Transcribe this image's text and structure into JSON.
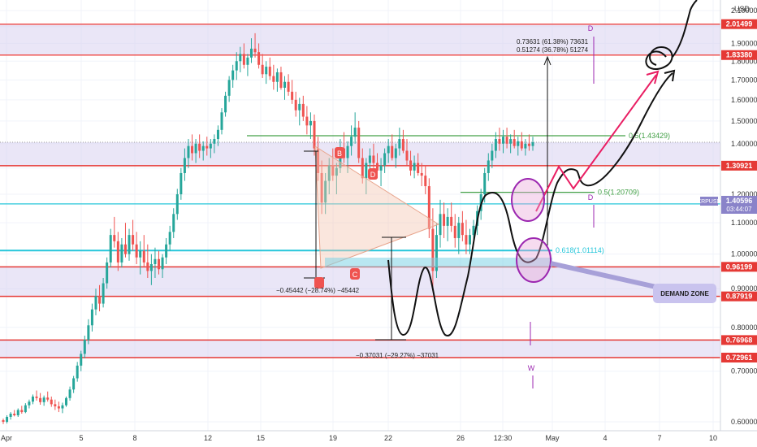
{
  "chart_data": {
    "type": "candlestick",
    "symbol": "XRPUSD",
    "currency": "USD",
    "current_price": "1.40596",
    "countdown": "03:44:07",
    "y_axis": {
      "scale": "log",
      "range": [
        0.57,
        2.12
      ],
      "ticks": [
        "2.10000",
        "2.00000",
        "1.90000",
        "1.80000",
        "1.70000",
        "1.60000",
        "1.50000",
        "1.40000",
        "1.30000",
        "1.20000",
        "1.10000",
        "1.00000",
        "0.90000",
        "0.80000",
        "0.70000",
        "0.60000"
      ]
    },
    "x_axis": {
      "ticks": [
        "Apr",
        "5",
        "8",
        "12",
        "15",
        "19",
        "22",
        "26",
        "12:30",
        "May",
        "4",
        "7",
        "10"
      ]
    },
    "levels": [
      {
        "label": "2.01499",
        "type": "resistance"
      },
      {
        "label": "1.83380",
        "type": "resistance"
      },
      {
        "label": "1.30921",
        "type": "support"
      },
      {
        "label": "1.16530",
        "type": "demand"
      },
      {
        "label": "0.96199",
        "type": "support"
      },
      {
        "label": "0.87919",
        "type": "support"
      },
      {
        "label": "0.76968",
        "type": "support"
      },
      {
        "label": "0.72961",
        "type": "support"
      }
    ],
    "fibs": [
      {
        "label": "0.5(1.43429)"
      },
      {
        "label": "0.5(1.20709)"
      },
      {
        "label": "0.618(1.01114)"
      }
    ],
    "pattern_points": [
      "B",
      "D",
      "C",
      "D",
      "D",
      "W"
    ],
    "annotations": {
      "projection_line1": "0.73631 (61.38%) 73631",
      "projection_line2": "0.51274 (36.78%) 51274",
      "drop1": "−0.45442 (−28.74%) −45442",
      "drop2": "−0.37031 (−29.27%) −37031",
      "demand_zone": "DEMAND ZONE"
    },
    "candles": [
      [
        0.603,
        0.606,
        0.596,
        0.6
      ],
      [
        0.6,
        0.612,
        0.597,
        0.609
      ],
      [
        0.609,
        0.618,
        0.604,
        0.615
      ],
      [
        0.615,
        0.622,
        0.61,
        0.612
      ],
      [
        0.612,
        0.625,
        0.609,
        0.622
      ],
      [
        0.622,
        0.63,
        0.615,
        0.618
      ],
      [
        0.618,
        0.635,
        0.616,
        0.631
      ],
      [
        0.631,
        0.642,
        0.625,
        0.638
      ],
      [
        0.638,
        0.652,
        0.633,
        0.648
      ],
      [
        0.648,
        0.66,
        0.64,
        0.645
      ],
      [
        0.645,
        0.655,
        0.632,
        0.637
      ],
      [
        0.637,
        0.65,
        0.63,
        0.646
      ],
      [
        0.646,
        0.658,
        0.638,
        0.642
      ],
      [
        0.642,
        0.648,
        0.628,
        0.633
      ],
      [
        0.633,
        0.642,
        0.622,
        0.629
      ],
      [
        0.629,
        0.638,
        0.618,
        0.625
      ],
      [
        0.625,
        0.636,
        0.616,
        0.631
      ],
      [
        0.631,
        0.648,
        0.628,
        0.645
      ],
      [
        0.645,
        0.668,
        0.64,
        0.662
      ],
      [
        0.662,
        0.69,
        0.655,
        0.685
      ],
      [
        0.685,
        0.72,
        0.678,
        0.712
      ],
      [
        0.712,
        0.745,
        0.7,
        0.738
      ],
      [
        0.738,
        0.78,
        0.728,
        0.77
      ],
      [
        0.77,
        0.82,
        0.76,
        0.805
      ],
      [
        0.805,
        0.86,
        0.79,
        0.845
      ],
      [
        0.845,
        0.9,
        0.83,
        0.88
      ],
      [
        0.88,
        0.91,
        0.84,
        0.86
      ],
      [
        0.86,
        0.93,
        0.85,
        0.915
      ],
      [
        0.915,
        0.99,
        0.9,
        0.975
      ],
      [
        0.975,
        1.08,
        0.96,
        1.06
      ],
      [
        1.06,
        1.12,
        1.02,
        1.04
      ],
      [
        1.04,
        1.07,
        0.95,
        0.975
      ],
      [
        0.975,
        1.05,
        0.96,
        1.03
      ],
      [
        1.03,
        1.1,
        0.99,
        1.0
      ],
      [
        1.0,
        1.08,
        0.98,
        1.06
      ],
      [
        1.06,
        1.11,
        1.01,
        1.03
      ],
      [
        1.03,
        1.07,
        0.97,
        0.99
      ],
      [
        0.99,
        1.04,
        0.94,
        1.01
      ],
      [
        1.01,
        1.06,
        0.96,
        0.975
      ],
      [
        0.975,
        1.03,
        0.93,
        0.95
      ],
      [
        0.95,
        1.0,
        0.91,
        0.97
      ],
      [
        0.97,
        1.02,
        0.93,
        0.985
      ],
      [
        0.985,
        1.01,
        0.94,
        0.955
      ],
      [
        0.955,
        1.0,
        0.93,
        0.99
      ],
      [
        0.99,
        1.05,
        0.97,
        1.03
      ],
      [
        1.03,
        1.09,
        1.01,
        1.07
      ],
      [
        1.07,
        1.15,
        1.05,
        1.13
      ],
      [
        1.13,
        1.22,
        1.11,
        1.2
      ],
      [
        1.2,
        1.3,
        1.18,
        1.28
      ],
      [
        1.28,
        1.38,
        1.25,
        1.34
      ],
      [
        1.34,
        1.42,
        1.3,
        1.39
      ],
      [
        1.39,
        1.44,
        1.33,
        1.36
      ],
      [
        1.36,
        1.42,
        1.32,
        1.4
      ],
      [
        1.4,
        1.44,
        1.34,
        1.37
      ],
      [
        1.37,
        1.41,
        1.33,
        1.39
      ],
      [
        1.39,
        1.43,
        1.35,
        1.38
      ],
      [
        1.38,
        1.42,
        1.34,
        1.4
      ],
      [
        1.4,
        1.44,
        1.36,
        1.42
      ],
      [
        1.42,
        1.48,
        1.39,
        1.46
      ],
      [
        1.46,
        1.56,
        1.44,
        1.54
      ],
      [
        1.54,
        1.64,
        1.52,
        1.62
      ],
      [
        1.62,
        1.72,
        1.59,
        1.7
      ],
      [
        1.7,
        1.78,
        1.66,
        1.75
      ],
      [
        1.75,
        1.85,
        1.7,
        1.8
      ],
      [
        1.8,
        1.88,
        1.74,
        1.84
      ],
      [
        1.84,
        1.9,
        1.76,
        1.78
      ],
      [
        1.78,
        1.84,
        1.72,
        1.82
      ],
      [
        1.82,
        1.93,
        1.79,
        1.87
      ],
      [
        1.87,
        1.96,
        1.82,
        1.85
      ],
      [
        1.85,
        1.9,
        1.76,
        1.78
      ],
      [
        1.78,
        1.84,
        1.71,
        1.73
      ],
      [
        1.73,
        1.8,
        1.68,
        1.77
      ],
      [
        1.77,
        1.82,
        1.7,
        1.72
      ],
      [
        1.72,
        1.78,
        1.65,
        1.69
      ],
      [
        1.69,
        1.76,
        1.64,
        1.74
      ],
      [
        1.74,
        1.77,
        1.65,
        1.66
      ],
      [
        1.66,
        1.72,
        1.6,
        1.69
      ],
      [
        1.69,
        1.73,
        1.62,
        1.64
      ],
      [
        1.64,
        1.7,
        1.58,
        1.6
      ],
      [
        1.6,
        1.64,
        1.52,
        1.55
      ],
      [
        1.55,
        1.61,
        1.48,
        1.58
      ],
      [
        1.58,
        1.62,
        1.5,
        1.52
      ],
      [
        1.52,
        1.57,
        1.44,
        1.48
      ],
      [
        1.48,
        1.54,
        1.42,
        1.5
      ],
      [
        1.5,
        1.53,
        1.35,
        1.38
      ],
      [
        1.38,
        1.43,
        1.25,
        1.28
      ],
      [
        1.28,
        1.33,
        1.13,
        1.17
      ],
      [
        1.17,
        1.28,
        1.13,
        1.25
      ],
      [
        1.25,
        1.34,
        1.2,
        1.31
      ],
      [
        1.31,
        1.38,
        1.25,
        1.27
      ],
      [
        1.27,
        1.32,
        1.2,
        1.3
      ],
      [
        1.3,
        1.42,
        1.28,
        1.38
      ],
      [
        1.38,
        1.45,
        1.32,
        1.34
      ],
      [
        1.34,
        1.41,
        1.28,
        1.39
      ],
      [
        1.39,
        1.48,
        1.35,
        1.43
      ],
      [
        1.43,
        1.54,
        1.4,
        1.47
      ],
      [
        1.47,
        1.5,
        1.32,
        1.34
      ],
      [
        1.34,
        1.38,
        1.24,
        1.26
      ],
      [
        1.26,
        1.34,
        1.2,
        1.32
      ],
      [
        1.32,
        1.38,
        1.26,
        1.35
      ],
      [
        1.35,
        1.4,
        1.3,
        1.32
      ],
      [
        1.32,
        1.36,
        1.26,
        1.29
      ],
      [
        1.29,
        1.34,
        1.23,
        1.31
      ],
      [
        1.31,
        1.38,
        1.28,
        1.36
      ],
      [
        1.36,
        1.42,
        1.32,
        1.39
      ],
      [
        1.39,
        1.44,
        1.33,
        1.34
      ],
      [
        1.34,
        1.4,
        1.3,
        1.38
      ],
      [
        1.38,
        1.47,
        1.35,
        1.42
      ],
      [
        1.42,
        1.46,
        1.36,
        1.37
      ],
      [
        1.37,
        1.42,
        1.31,
        1.33
      ],
      [
        1.33,
        1.37,
        1.27,
        1.29
      ],
      [
        1.29,
        1.35,
        1.26,
        1.32
      ],
      [
        1.32,
        1.36,
        1.27,
        1.28
      ],
      [
        1.28,
        1.32,
        1.23,
        1.27
      ],
      [
        1.27,
        1.31,
        1.2,
        1.23
      ],
      [
        1.23,
        1.26,
        1.05,
        1.08
      ],
      [
        1.08,
        1.15,
        0.9,
        0.95
      ],
      [
        0.95,
        1.1,
        0.93,
        1.06
      ],
      [
        1.06,
        1.18,
        1.02,
        1.13
      ],
      [
        1.13,
        1.17,
        1.05,
        1.09
      ],
      [
        1.09,
        1.15,
        1.04,
        1.12
      ],
      [
        1.12,
        1.17,
        1.07,
        1.09
      ],
      [
        1.09,
        1.13,
        1.02,
        1.05
      ],
      [
        1.05,
        1.12,
        1.0,
        1.1
      ],
      [
        1.1,
        1.14,
        1.04,
        1.06
      ],
      [
        1.06,
        1.11,
        1.0,
        1.03
      ],
      [
        1.03,
        1.08,
        1.0,
        1.06
      ],
      [
        1.06,
        1.11,
        1.03,
        1.09
      ],
      [
        1.09,
        1.16,
        1.06,
        1.14
      ],
      [
        1.14,
        1.22,
        1.11,
        1.2
      ],
      [
        1.2,
        1.3,
        1.17,
        1.28
      ],
      [
        1.28,
        1.36,
        1.25,
        1.33
      ],
      [
        1.33,
        1.4,
        1.3,
        1.37
      ],
      [
        1.37,
        1.45,
        1.34,
        1.42
      ],
      [
        1.42,
        1.47,
        1.37,
        1.4
      ],
      [
        1.4,
        1.46,
        1.36,
        1.43
      ],
      [
        1.43,
        1.47,
        1.38,
        1.4
      ],
      [
        1.4,
        1.44,
        1.36,
        1.42
      ],
      [
        1.42,
        1.46,
        1.38,
        1.39
      ],
      [
        1.39,
        1.43,
        1.35,
        1.41
      ],
      [
        1.41,
        1.45,
        1.37,
        1.38
      ],
      [
        1.38,
        1.42,
        1.35,
        1.4
      ],
      [
        1.4,
        1.44,
        1.37,
        1.39
      ],
      [
        1.39,
        1.43,
        1.37,
        1.406
      ]
    ]
  }
}
